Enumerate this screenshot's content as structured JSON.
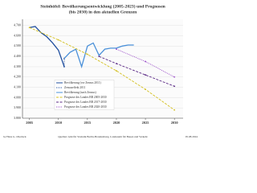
{
  "chart_data": {
    "type": "line",
    "title": [
      "Steinhöfel: Bevölkerungsentwicklung (2005-2023) und Prognosen",
      "(bis 2030) in den aktuellen Grenzen"
    ],
    "xlim": [
      2003.8,
      2031.5
    ],
    "xticks": [
      2005,
      2010,
      2015,
      2020,
      2025,
      2030
    ],
    "ylim": [
      3800,
      4760
    ],
    "yticks": [
      {
        "value": 3800,
        "label": "3.800"
      },
      {
        "value": 3900,
        "label": "3.900"
      },
      {
        "value": 4000,
        "label": "4.000"
      },
      {
        "value": 4100,
        "label": "4.100"
      },
      {
        "value": 4200,
        "label": "4.200"
      },
      {
        "value": 4300,
        "label": "4.300"
      },
      {
        "value": 4400,
        "label": "4.400"
      },
      {
        "value": 4500,
        "label": "4.500"
      },
      {
        "value": 4600,
        "label": "4.600"
      },
      {
        "value": 4700,
        "label": "4.700"
      }
    ],
    "grid": true,
    "series": [
      {
        "name": "Bevölkerung (vor Zensus 2011)",
        "color": "#1f4e9e",
        "dash": "solid",
        "x": [
          2005,
          2006,
          2007,
          2008,
          2009,
          2010,
          2011
        ],
        "values": [
          4680,
          4690,
          4630,
          4590,
          4530,
          4460,
          4300
        ]
      },
      {
        "name": "Zensuseffekt 2011",
        "color": "#1f4e9e",
        "dash": "dotted",
        "x": [
          2011,
          2011
        ],
        "values": [
          4300,
          4380
        ]
      },
      {
        "name": "Bevölkerung (nach Zensus)",
        "color": "#4a90d9",
        "dash": "solid",
        "x": [
          2011,
          2012,
          2013,
          2014,
          2015,
          2016,
          2017,
          2018,
          2019,
          2020,
          2021,
          2022,
          2023
        ],
        "values": [
          4380,
          4440,
          4470,
          4300,
          4500,
          4530,
          4410,
          4470,
          4480,
          4480,
          4500,
          4510,
          4510
        ]
      },
      {
        "name": "Prognose des Landes BB 2005-2030",
        "color": "#d4c020",
        "dash": "dashed",
        "x": [
          2005,
          2010,
          2015,
          2020,
          2025,
          2030
        ],
        "values": [
          4680,
          4560,
          4420,
          4260,
          4080,
          3880
        ]
      },
      {
        "name": "Prognose des Landes BB 2017-2030",
        "color": "#5b2a86",
        "dash": "dashed",
        "x": [
          2017,
          2020,
          2025,
          2030
        ],
        "values": [
          4400,
          4330,
          4220,
          4110
        ]
      },
      {
        "name": "Prognose des Landes BB 2020-2030",
        "color": "#9b4fc9",
        "dash": "dotted",
        "x": [
          2020,
          2025,
          2030
        ],
        "values": [
          4470,
          4350,
          4200
        ]
      }
    ],
    "footer": {
      "left": "by Hans G. Oberlack",
      "center": "Quellen: Amt für Statistik Berlin-Brandenburg, Landesamt für Bauen und Verkehr",
      "right": "05.08.2024"
    }
  }
}
